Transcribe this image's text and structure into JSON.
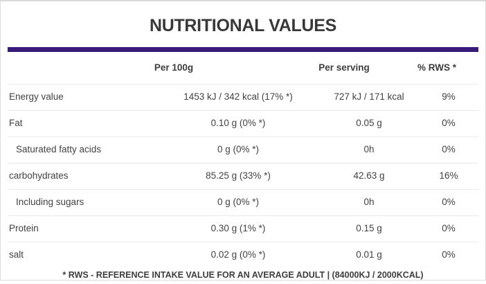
{
  "title": "NUTRITIONAL VALUES",
  "colors": {
    "accent_purple": "#3a1a78",
    "text_dark": "#383838",
    "row_divider": "#e9e9e9",
    "frame_border": "#dcdcdc"
  },
  "table": {
    "headers": {
      "per_100g": "Per 100g",
      "per_serving": "Per serving",
      "rws": "% RWS *"
    },
    "rows": [
      {
        "label": "Energy value",
        "per_100g": "1453 kJ / 342 kcal (17% *)",
        "per_serving": "727 kJ / 171 kcal",
        "rws": "9%"
      },
      {
        "label": "Fat",
        "per_100g": "0.10 g (0% *)",
        "per_serving": "0.05 g",
        "rws": "0%"
      },
      {
        "label": "Saturated fatty acids",
        "per_100g": "0 g (0% *)",
        "per_serving": "0h",
        "rws": "0%"
      },
      {
        "label": "carbohydrates",
        "per_100g": "85.25 g (33% *)",
        "per_serving": "42.63 g",
        "rws": "16%"
      },
      {
        "label": "Including sugars",
        "per_100g": "0 g (0% *)",
        "per_serving": "0h",
        "rws": "0%"
      },
      {
        "label": "Protein",
        "per_100g": "0.30 g (1% *)",
        "per_serving": "0.15 g",
        "rws": "0%"
      },
      {
        "label": "salt",
        "per_100g": "0.02 g (0% *)",
        "per_serving": "0.01 g",
        "rws": "0%"
      }
    ]
  },
  "footer": "* RWS - REFERENCE INTAKE VALUE FOR AN AVERAGE ADULT | (84000KJ / 2000KCAL)"
}
